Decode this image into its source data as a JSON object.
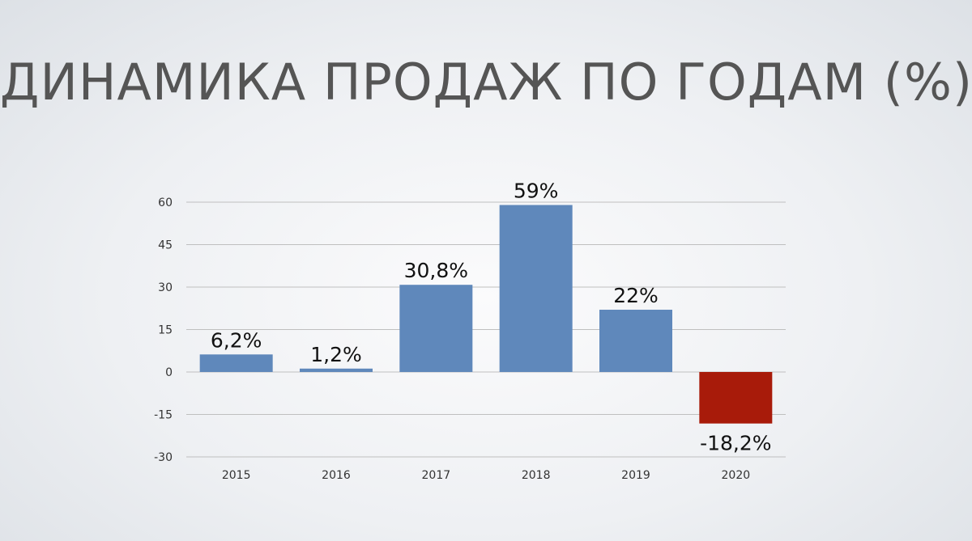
{
  "slide": {
    "title": "ДИНАМИКА ПРОДАЖ ПО ГОДАМ (%)"
  },
  "colors": {
    "positive_bar": "#5f88bb",
    "negative_bar": "#a81b0a",
    "gridline": "#bfbfbf",
    "title_text": "#555555"
  },
  "chart_data": {
    "type": "bar",
    "categories": [
      "2015",
      "2016",
      "2017",
      "2018",
      "2019",
      "2020"
    ],
    "values": [
      6.2,
      1.2,
      30.8,
      59,
      22,
      -18.2
    ],
    "data_labels": [
      "6,2%",
      "1,2%",
      "30,8%",
      "59%",
      "22%",
      "-18,2%"
    ],
    "title": "ДИНАМИКА ПРОДАЖ ПО ГОДАМ (%)",
    "xlabel": "",
    "ylabel": "",
    "ylim": [
      -30,
      60
    ],
    "yticks": [
      60,
      45,
      30,
      15,
      0,
      -15,
      -30
    ],
    "grid": true,
    "legend": "none"
  }
}
